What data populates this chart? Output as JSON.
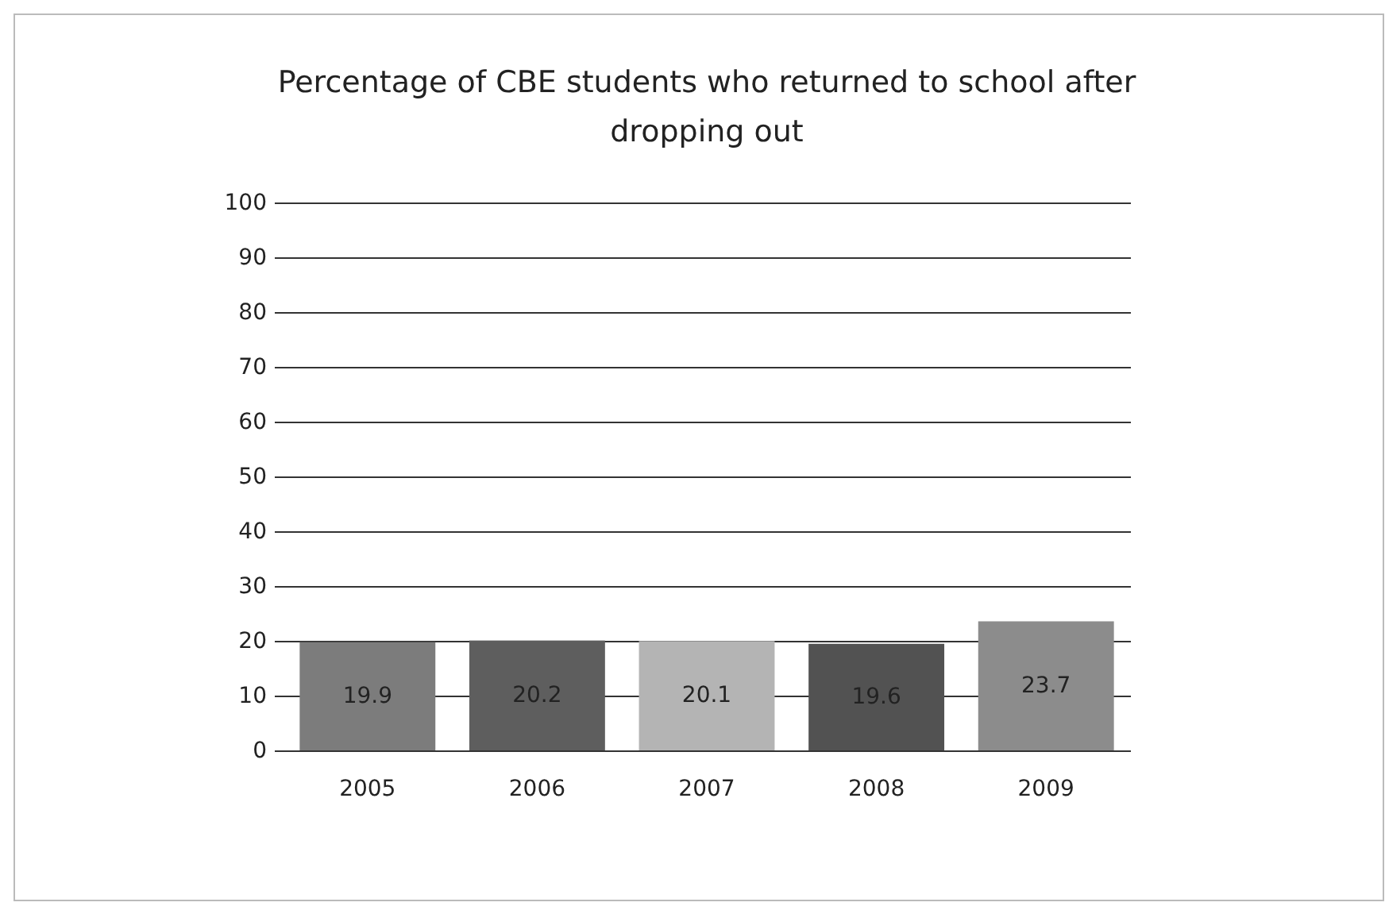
{
  "chart_data": {
    "type": "bar",
    "title": "Percentage of CBE students who returned to school after dropping out",
    "categories": [
      "2005",
      "2006",
      "2007",
      "2008",
      "2009"
    ],
    "values": [
      19.9,
      20.2,
      20.1,
      19.6,
      23.7
    ],
    "colors": [
      "#7c7c7c",
      "#5e5e5e",
      "#b4b4b4",
      "#525252",
      "#8c8c8c"
    ],
    "ylim": [
      0,
      100
    ],
    "yticks": [
      0,
      10,
      20,
      30,
      40,
      50,
      60,
      70,
      80,
      90,
      100
    ],
    "grid": "y",
    "data_labels": true
  }
}
